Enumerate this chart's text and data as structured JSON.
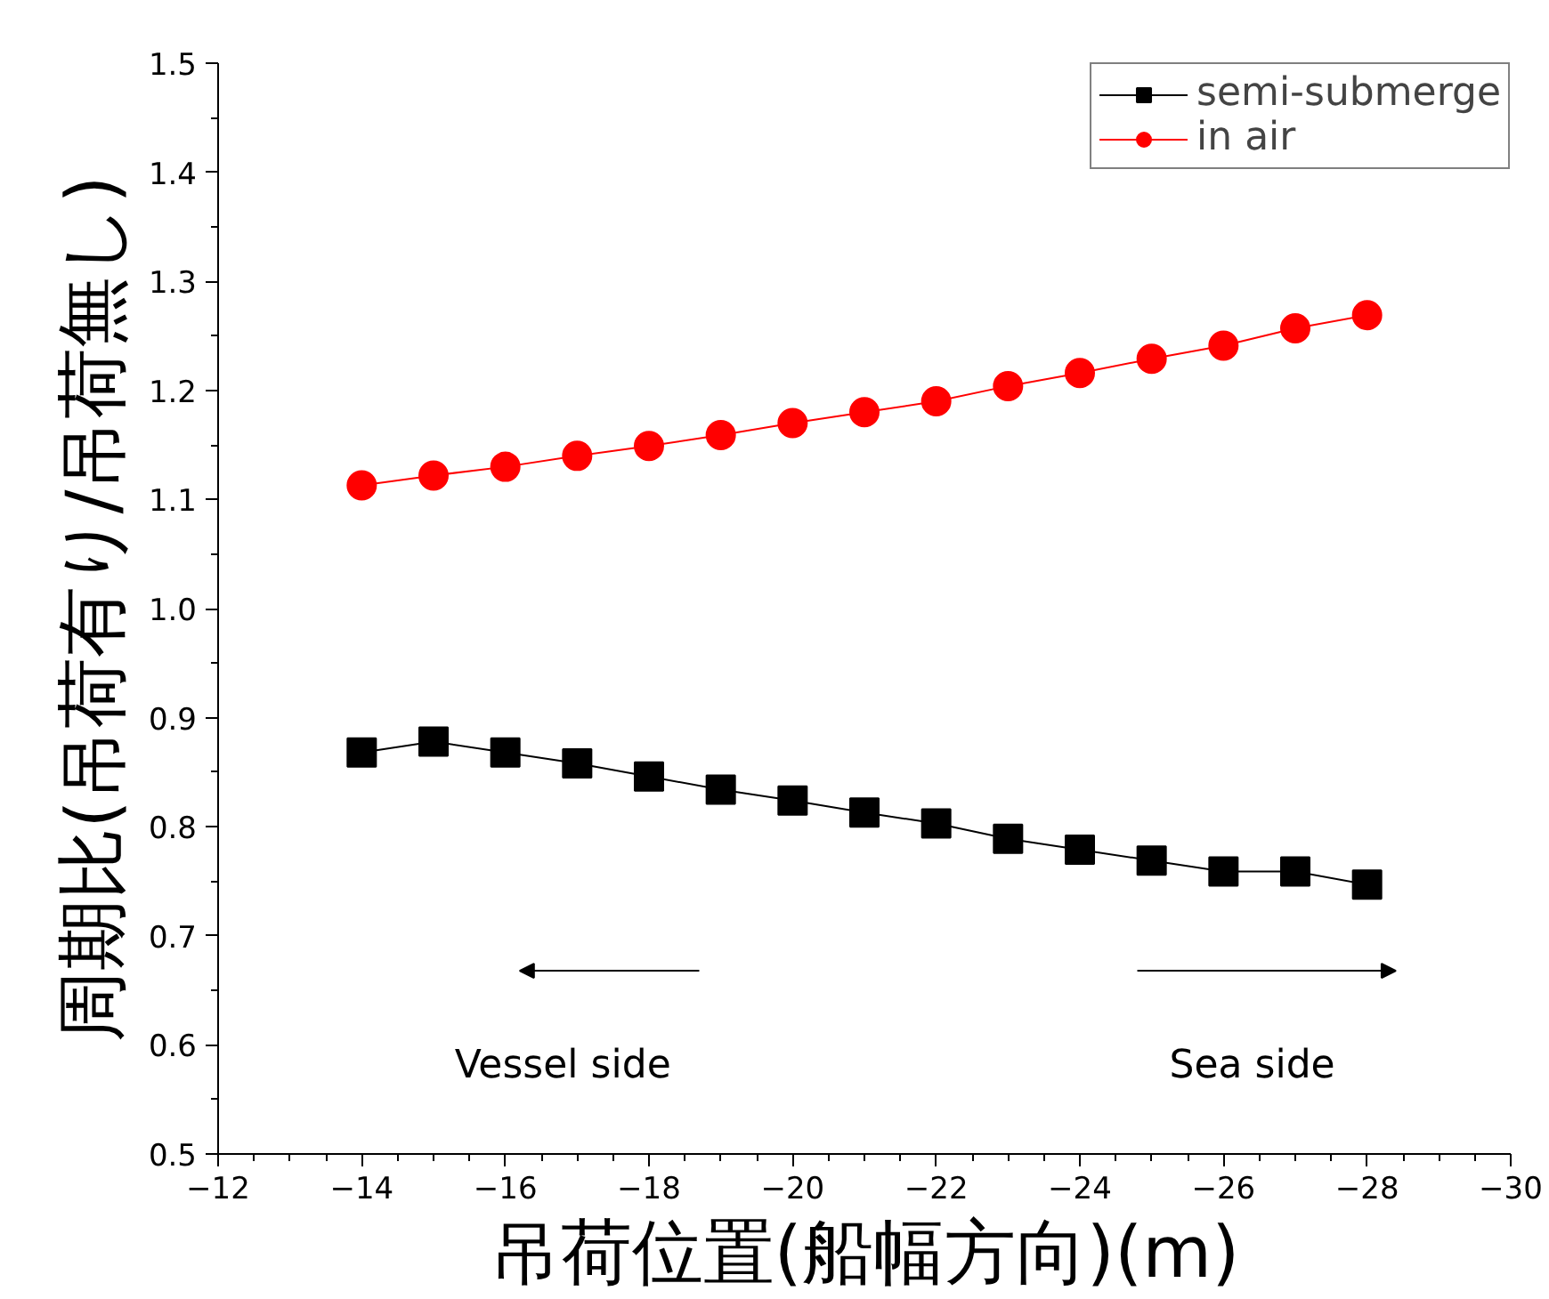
{
  "chart_data": {
    "type": "line",
    "xlabel": "吊荷位置(船幅方向)(m)",
    "ylabel": "周期比(吊荷有り/吊荷無し)",
    "x": [
      -14,
      -15,
      -16,
      -17,
      -18,
      -19,
      -20,
      -21,
      -22,
      -23,
      -24,
      -25,
      -26,
      -27,
      -28
    ],
    "series": [
      {
        "name": "semi-submerge",
        "color": "#000000",
        "marker": "square",
        "values": [
          0.868,
          0.878,
          0.868,
          0.858,
          0.846,
          0.834,
          0.824,
          0.813,
          0.803,
          0.789,
          0.779,
          0.769,
          0.759,
          0.759,
          0.747
        ]
      },
      {
        "name": "in air",
        "color": "#ff0000",
        "marker": "circle",
        "values": [
          1.113,
          1.122,
          1.13,
          1.14,
          1.149,
          1.159,
          1.17,
          1.18,
          1.19,
          1.204,
          1.216,
          1.229,
          1.241,
          1.257,
          1.269
        ]
      }
    ],
    "xlim": [
      -12,
      -30
    ],
    "xticks": [
      {
        "value": -12,
        "label": "−12"
      },
      {
        "value": -14,
        "label": "−14"
      },
      {
        "value": -16,
        "label": "−16"
      },
      {
        "value": -18,
        "label": "−18"
      },
      {
        "value": -20,
        "label": "−20"
      },
      {
        "value": -22,
        "label": "−22"
      },
      {
        "value": -24,
        "label": "−24"
      },
      {
        "value": -26,
        "label": "−26"
      },
      {
        "value": -28,
        "label": "−28"
      },
      {
        "value": -30,
        "label": "−30"
      }
    ],
    "ylim": [
      0.5,
      1.5
    ],
    "yticks": [
      0.5,
      0.6,
      0.7,
      0.8,
      0.9,
      {
        "value": 1,
        "label": "1.0"
      },
      1.1,
      1.2,
      1.3,
      1.4,
      1.5
    ],
    "annotations": [
      "Vessel side",
      "Sea side"
    ],
    "legend": "top right",
    "grid": false,
    "line_style": "solid"
  }
}
